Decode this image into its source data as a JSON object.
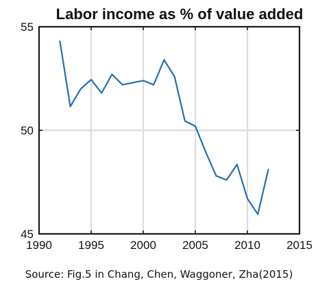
{
  "chart_data": {
    "type": "line",
    "title": "Labor income as % of value added",
    "xlabel": "",
    "ylabel": "",
    "xlim": [
      1990,
      2015
    ],
    "ylim": [
      45,
      55
    ],
    "xticks": [
      "1990",
      "1995",
      "2000",
      "2005",
      "2010",
      "2015"
    ],
    "yticks": [
      "45",
      "50",
      "55"
    ],
    "grid": true,
    "series": [
      {
        "color": "#1f6fb4",
        "x": [
          1992,
          1993,
          1994,
          1995,
          1996,
          1997,
          1998,
          1999,
          2000,
          2001,
          2002,
          2003,
          2004,
          2005,
          2006,
          2007,
          2008,
          2009,
          2010,
          2011,
          2012
        ],
        "y": [
          54.3,
          51.15,
          52.0,
          52.45,
          51.8,
          52.7,
          52.2,
          52.3,
          52.4,
          52.2,
          53.4,
          52.6,
          50.45,
          50.2,
          48.95,
          47.8,
          47.6,
          48.35,
          46.7,
          45.95,
          48.1
        ]
      }
    ]
  },
  "caption": {
    "source": "Source: Fig.5 in Chang, Chen, Waggoner, Zha(2015)"
  }
}
